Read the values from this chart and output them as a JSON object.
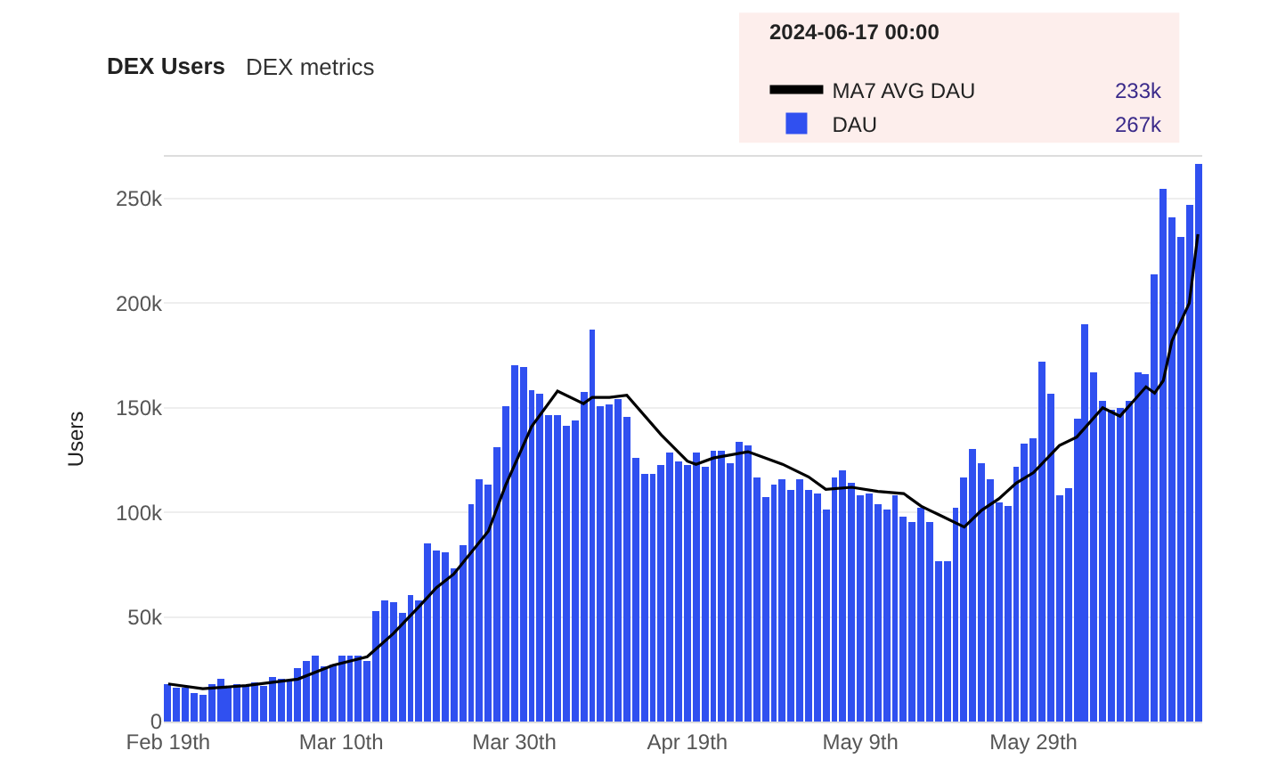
{
  "chart_data": {
    "type": "bar",
    "title": "DEX Users",
    "subtitle": "DEX metrics",
    "ylabel": "Users",
    "x": [
      "2024-02-19",
      "2024-02-20",
      "2024-02-21",
      "2024-02-22",
      "2024-02-23",
      "2024-02-24",
      "2024-02-25",
      "2024-02-26",
      "2024-02-27",
      "2024-02-28",
      "2024-02-29",
      "2024-03-01",
      "2024-03-02",
      "2024-03-03",
      "2024-03-04",
      "2024-03-05",
      "2024-03-06",
      "2024-03-07",
      "2024-03-08",
      "2024-03-09",
      "2024-03-10",
      "2024-03-11",
      "2024-03-12",
      "2024-03-13",
      "2024-03-14",
      "2024-03-15",
      "2024-03-16",
      "2024-03-17",
      "2024-03-18",
      "2024-03-19",
      "2024-03-20",
      "2024-03-21",
      "2024-03-22",
      "2024-03-23",
      "2024-03-24",
      "2024-03-25",
      "2024-03-26",
      "2024-03-27",
      "2024-03-28",
      "2024-03-29",
      "2024-03-30",
      "2024-03-31",
      "2024-04-01",
      "2024-04-02",
      "2024-04-03",
      "2024-04-04",
      "2024-04-05",
      "2024-04-06",
      "2024-04-07",
      "2024-04-08",
      "2024-04-09",
      "2024-04-10",
      "2024-04-11",
      "2024-04-12",
      "2024-04-13",
      "2024-04-14",
      "2024-04-15",
      "2024-04-16",
      "2024-04-17",
      "2024-04-18",
      "2024-04-19",
      "2024-04-20",
      "2024-04-21",
      "2024-04-22",
      "2024-04-23",
      "2024-04-24",
      "2024-04-25",
      "2024-04-26",
      "2024-04-27",
      "2024-04-28",
      "2024-04-29",
      "2024-04-30",
      "2024-05-01",
      "2024-05-02",
      "2024-05-03",
      "2024-05-04",
      "2024-05-05",
      "2024-05-06",
      "2024-05-07",
      "2024-05-08",
      "2024-05-09",
      "2024-05-10",
      "2024-05-11",
      "2024-05-12",
      "2024-05-13",
      "2024-05-14",
      "2024-05-15",
      "2024-05-16",
      "2024-05-17",
      "2024-05-18",
      "2024-05-19",
      "2024-05-20",
      "2024-05-21",
      "2024-05-22",
      "2024-05-23",
      "2024-05-24",
      "2024-05-25",
      "2024-05-26",
      "2024-05-27",
      "2024-05-28",
      "2024-05-29",
      "2024-05-30",
      "2024-05-31",
      "2024-06-01",
      "2024-06-02",
      "2024-06-03",
      "2024-06-04",
      "2024-06-05",
      "2024-06-06",
      "2024-06-07",
      "2024-06-08",
      "2024-06-09",
      "2024-06-10",
      "2024-06-11",
      "2024-06-12",
      "2024-06-13",
      "2024-06-14",
      "2024-06-15",
      "2024-06-16",
      "2024-06-17"
    ],
    "series": [
      {
        "name": "DAU",
        "color": "#3050f0",
        "values": [
          18300,
          16500,
          16500,
          13900,
          13100,
          17800,
          20800,
          16500,
          18300,
          17200,
          18800,
          17200,
          21600,
          20800,
          19800,
          25500,
          28800,
          31700,
          26800,
          27600,
          31100,
          31700,
          31100,
          28800,
          53000,
          58100,
          56900,
          51700,
          60700,
          57700,
          85200,
          82100,
          80500,
          73300,
          84700,
          104200,
          116000,
          113000,
          131000,
          151000,
          170000,
          169600,
          158300,
          156700,
          146400,
          146400,
          141300,
          143800,
          158000,
          187600,
          151000,
          151600,
          154200,
          145900,
          126400,
          118100,
          118600,
          122700,
          128900,
          124500,
          122700,
          128900,
          122000,
          129200,
          129700,
          123800,
          133600,
          132300,
          116600,
          107300,
          113700,
          115800,
          110900,
          116000,
          110900,
          109100,
          101100,
          116800,
          119900,
          114300,
          107800,
          109100,
          104000,
          101400,
          108300,
          98000,
          95000,
          101900,
          95500,
          77000,
          76400,
          101900,
          116600,
          130500,
          123500,
          115500,
          104700,
          103200,
          121500,
          132800,
          135100,
          172200,
          156700,
          108100,
          111200,
          145100,
          190200,
          167300,
          152900,
          149000,
          150300,
          153400,
          166800,
          166000,
          213600,
          254500,
          241000,
          231400,
          246800,
          267000
        ]
      },
      {
        "name": "MA7 AVG DAU",
        "type": "line",
        "color": "#000000",
        "x": [
          "2024-02-19",
          "2024-02-23",
          "2024-02-28",
          "2024-03-05",
          "2024-03-09",
          "2024-03-13",
          "2024-03-16",
          "2024-03-19",
          "2024-03-21",
          "2024-03-23",
          "2024-03-27",
          "2024-03-29",
          "2024-04-01",
          "2024-04-04",
          "2024-04-07",
          "2024-04-08",
          "2024-04-10",
          "2024-04-12",
          "2024-04-16",
          "2024-04-19",
          "2024-04-20",
          "2024-04-22",
          "2024-04-26",
          "2024-04-30",
          "2024-05-03",
          "2024-05-05",
          "2024-05-08",
          "2024-05-11",
          "2024-05-14",
          "2024-05-16",
          "2024-05-17",
          "2024-05-18",
          "2024-05-21",
          "2024-05-23",
          "2024-05-25",
          "2024-05-27",
          "2024-05-29",
          "2024-06-01",
          "2024-06-03",
          "2024-06-06",
          "2024-06-08",
          "2024-06-11",
          "2024-06-12",
          "2024-06-13",
          "2024-06-14",
          "2024-06-16",
          "2024-06-17"
        ],
        "values": [
          18000,
          15700,
          17200,
          20300,
          26800,
          31000,
          42000,
          55000,
          64000,
          70500,
          91000,
          113000,
          141000,
          158000,
          152000,
          155000,
          155000,
          156000,
          137000,
          124500,
          123000,
          126000,
          129000,
          123000,
          117000,
          111000,
          112000,
          110000,
          109000,
          103000,
          101000,
          99000,
          93000,
          101000,
          106500,
          114000,
          119000,
          132000,
          136000,
          150000,
          146000,
          160000,
          157000,
          163000,
          182000,
          200000,
          233000
        ]
      }
    ],
    "xlim": [
      "2024-02-18T12:00",
      "2024-06-17T12:00"
    ],
    "xticks": [
      {
        "value": "2024-02-19",
        "label": "Feb 19th"
      },
      {
        "value": "2024-03-10",
        "label": "Mar 10th"
      },
      {
        "value": "2024-03-30",
        "label": "Mar 30th"
      },
      {
        "value": "2024-04-19",
        "label": "Apr 19th"
      },
      {
        "value": "2024-05-09",
        "label": "May 9th"
      },
      {
        "value": "2024-05-29",
        "label": "May 29th"
      }
    ],
    "ylim": [
      0,
      270000
    ],
    "yticks": [
      {
        "value": 0,
        "label": "0"
      },
      {
        "value": 50000,
        "label": "50k"
      },
      {
        "value": 100000,
        "label": "100k"
      },
      {
        "value": 150000,
        "label": "150k"
      },
      {
        "value": 200000,
        "label": "200k"
      },
      {
        "value": 250000,
        "label": "250k"
      }
    ],
    "grid": "y",
    "legend": "top right",
    "marker": "none",
    "line_style": "solid",
    "annotations": [
      "2024-06-17 00:00",
      "233k",
      "267k"
    ]
  }
}
